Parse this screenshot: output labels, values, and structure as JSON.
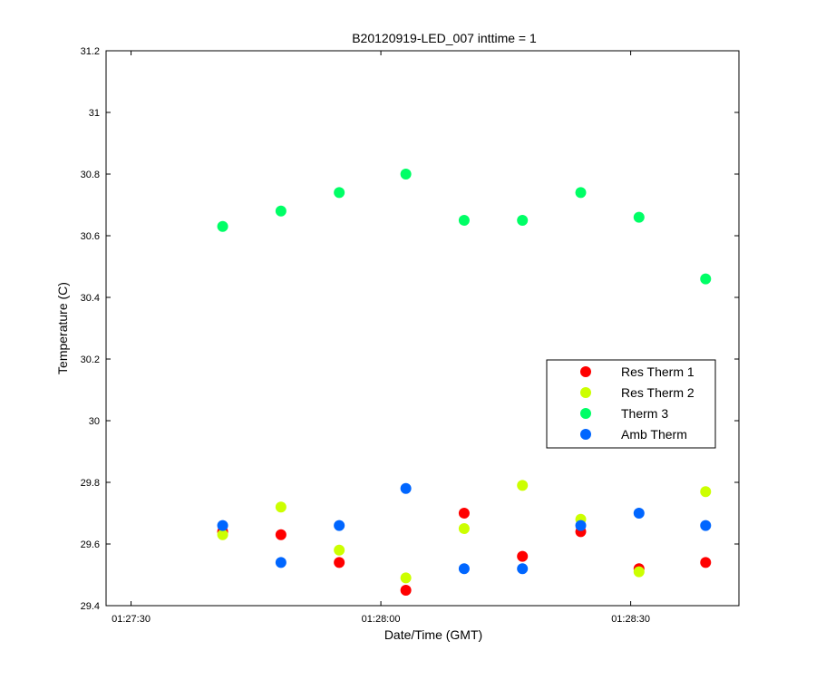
{
  "chart_data": {
    "type": "scatter",
    "title": "B20120919-LED_007 inttime = 1",
    "xlabel": "Date/Time (GMT)",
    "ylabel": "Temperature (C)",
    "x_axis_type": "time",
    "xlim": [
      "01:27:27",
      "01:28:43"
    ],
    "ylim": [
      29.4,
      31.2
    ],
    "xticks": [
      {
        "time": "01:27:30",
        "label": "01:27:30"
      },
      {
        "time": "01:28:00",
        "label": "01:28:00"
      },
      {
        "time": "01:28:30",
        "label": "01:28:30"
      }
    ],
    "yticks": [
      {
        "value": 29.4,
        "label": "29.4"
      },
      {
        "value": 29.6,
        "label": "29.6"
      },
      {
        "value": 29.8,
        "label": "29.8"
      },
      {
        "value": 30.0,
        "label": "30"
      },
      {
        "value": 30.2,
        "label": "30.2"
      },
      {
        "value": 30.4,
        "label": "30.4"
      },
      {
        "value": 30.6,
        "label": "30.6"
      },
      {
        "value": 30.8,
        "label": "30.8"
      },
      {
        "value": 31.0,
        "label": "31"
      },
      {
        "value": 31.2,
        "label": "31.2"
      }
    ],
    "grid": false,
    "legend_position": "right",
    "x": [
      "01:27:41",
      "01:27:48",
      "01:27:55",
      "01:28:03",
      "01:28:10",
      "01:28:17",
      "01:28:24",
      "01:28:31",
      "01:28:39"
    ],
    "series": [
      {
        "name": "Res Therm 1",
        "color": "#ff0000",
        "values": [
          29.64,
          29.63,
          29.54,
          29.45,
          29.7,
          29.56,
          29.64,
          29.52,
          29.54
        ]
      },
      {
        "name": "Res Therm 2",
        "color": "#ccff00",
        "values": [
          29.63,
          29.72,
          29.58,
          29.49,
          29.65,
          29.79,
          29.68,
          29.51,
          29.77
        ]
      },
      {
        "name": "Therm 3",
        "color": "#00ff66",
        "values": [
          30.63,
          30.68,
          30.74,
          30.8,
          30.65,
          30.65,
          30.74,
          30.66,
          30.46
        ]
      },
      {
        "name": "Amb Therm",
        "color": "#0066ff",
        "values": [
          29.66,
          29.54,
          29.66,
          29.78,
          29.52,
          29.52,
          29.66,
          29.7,
          29.66
        ]
      }
    ]
  }
}
